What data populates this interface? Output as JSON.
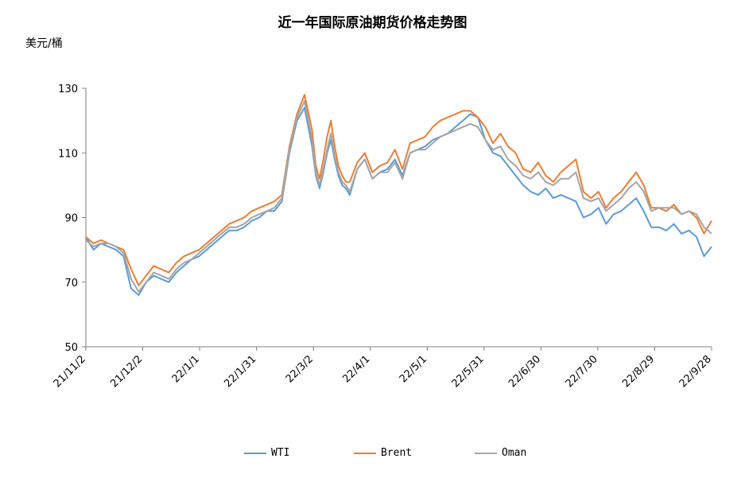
{
  "chart_data": {
    "type": "line",
    "title": "近一年国际原油期货价格走势图",
    "ylabel": "美元/桶",
    "xlabel": "",
    "ylim": [
      50,
      130
    ],
    "yticks": [
      50,
      70,
      90,
      110,
      130
    ],
    "xticks": [
      "21/11/2",
      "21/12/2",
      "22/1/1",
      "22/1/31",
      "22/3/2",
      "22/4/1",
      "22/5/1",
      "22/5/31",
      "22/6/30",
      "22/7/30",
      "22/8/29",
      "22/9/28"
    ],
    "grid": false,
    "legend_position": "bottom",
    "x": [
      0,
      4,
      8,
      12,
      16,
      20,
      24,
      28,
      32,
      36,
      40,
      44,
      48,
      52,
      56,
      60,
      64,
      68,
      72,
      76,
      80,
      84,
      88,
      92,
      96,
      100,
      104,
      108,
      112,
      116,
      120,
      122,
      124,
      126,
      128,
      130,
      132,
      134,
      136,
      138,
      140,
      144,
      148,
      152,
      156,
      160,
      164,
      168,
      172,
      176,
      180,
      184,
      188,
      192,
      196,
      200,
      204,
      208,
      212,
      216,
      220,
      224,
      228,
      232,
      236,
      240,
      244,
      248,
      252,
      256,
      260,
      264,
      268,
      272,
      276,
      280,
      284,
      288,
      292,
      296,
      300,
      304,
      308,
      312,
      316,
      320,
      324,
      328,
      332
    ],
    "series": [
      {
        "name": "WTI",
        "color": "#5B9BD5",
        "values": [
          84,
          80,
          82,
          81,
          80,
          78,
          68,
          66,
          70,
          72,
          71,
          70,
          73,
          75,
          77,
          78,
          80,
          82,
          84,
          86,
          86,
          87,
          89,
          90,
          92,
          92,
          95,
          110,
          120,
          124,
          112,
          103,
          99,
          104,
          110,
          114,
          108,
          103,
          100,
          99,
          97,
          105,
          108,
          102,
          104,
          105,
          108,
          103,
          110,
          111,
          112,
          114,
          115,
          116,
          118,
          120,
          122,
          121,
          114,
          110,
          109,
          106,
          103,
          100,
          98,
          97,
          99,
          96,
          97,
          96,
          95,
          90,
          91,
          93,
          88,
          91,
          92,
          94,
          96,
          92,
          87,
          87,
          86,
          88,
          85,
          86,
          84,
          78,
          81
        ]
      },
      {
        "name": "Brent",
        "color": "#ED7D31",
        "values": [
          84,
          82,
          83,
          82,
          81,
          80,
          74,
          69,
          72,
          75,
          74,
          73,
          76,
          78,
          79,
          80,
          82,
          84,
          86,
          88,
          89,
          90,
          92,
          93,
          94,
          95,
          97,
          112,
          122,
          128,
          117,
          106,
          102,
          108,
          115,
          120,
          112,
          106,
          103,
          101,
          101,
          107,
          110,
          104,
          106,
          107,
          111,
          105,
          113,
          114,
          115,
          118,
          120,
          121,
          122,
          123,
          123,
          121,
          118,
          113,
          116,
          112,
          110,
          105,
          104,
          107,
          103,
          101,
          104,
          106,
          108,
          98,
          96,
          98,
          93,
          96,
          98,
          101,
          104,
          100,
          93,
          93,
          92,
          94,
          91,
          92,
          90,
          85,
          89
        ]
      },
      {
        "name": "Oman",
        "color": "#A5A5A5",
        "values": [
          83,
          81,
          82,
          82,
          81,
          79,
          71,
          67,
          70,
          73,
          72,
          71,
          74,
          76,
          77,
          79,
          81,
          83,
          85,
          87,
          87,
          88,
          90,
          91,
          92,
          93,
          96,
          111,
          121,
          126,
          114,
          104,
          100,
          105,
          111,
          116,
          109,
          104,
          101,
          100,
          98,
          105,
          108,
          102,
          104,
          104,
          107,
          102,
          110,
          111,
          111,
          113,
          115,
          116,
          117,
          118,
          119,
          118,
          114,
          111,
          112,
          108,
          106,
          103,
          102,
          104,
          101,
          100,
          102,
          102,
          104,
          96,
          95,
          96,
          92,
          94,
          96,
          99,
          101,
          98,
          92,
          93,
          93,
          93,
          91,
          92,
          91,
          87,
          85
        ]
      }
    ]
  }
}
